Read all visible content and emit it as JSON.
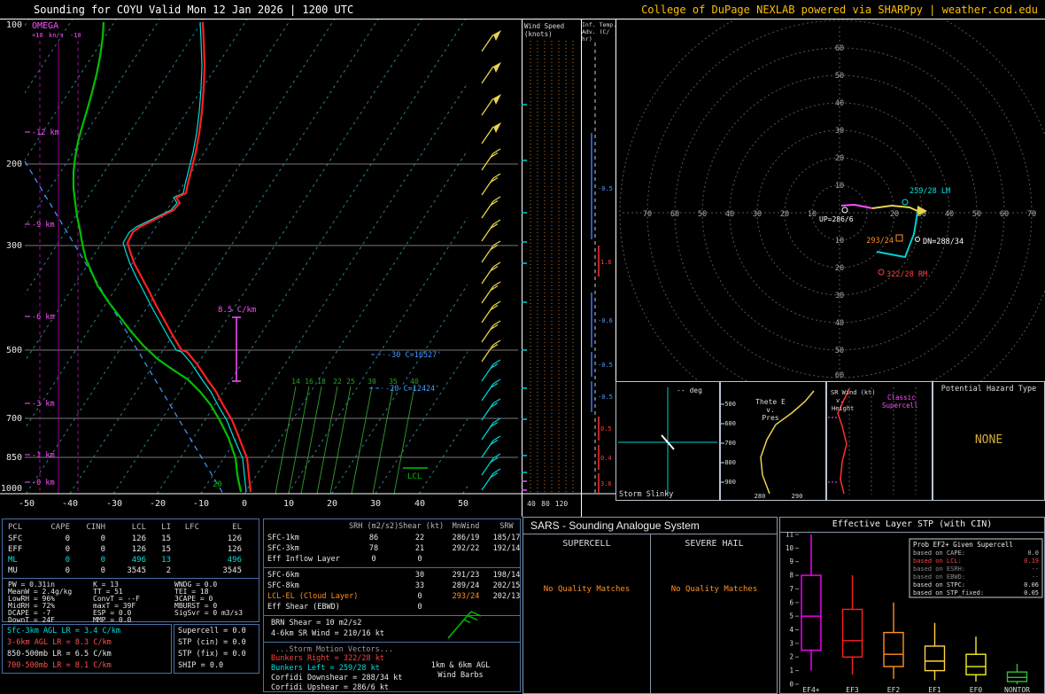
{
  "header": {
    "title": "Sounding for COYU Valid  Mon 12 Jan 2026 | 1200 UTC",
    "credit": "College of DuPage NEXLAB powered via SHARPpy | weather.cod.edu"
  },
  "colors": {
    "temperature": "#ff2020",
    "dewpoint": "#00c000",
    "wetbulb": "#00e0e0",
    "credit": "#ffbf00",
    "hazard_none": "#d4af37"
  },
  "sk": {
    "omega": "OMEGA",
    "op": "+10",
    "ou": "kn/s",
    "om": "-10",
    "p": [
      "100",
      "200",
      "300",
      "500",
      "700",
      "850",
      "1000"
    ],
    "h": [
      "-12 km",
      "-9 km",
      "-6 km",
      "-3 km",
      "-1 km",
      "-0 km"
    ],
    "t": [
      "-50",
      "-40",
      "-30",
      "-20",
      "-10",
      "0",
      "10",
      "20",
      "30",
      "40",
      "50"
    ],
    "lapse": "8.5 C/km",
    "iso30": "-30 C=16527'",
    "iso20": "-20 C=12424'",
    "lcl": "LCL",
    "sfc": "20",
    "mr": [
      "14",
      "16",
      "18",
      "22",
      "25",
      "30",
      "35",
      "40"
    ]
  },
  "wp": {
    "t1": "Wind Speed",
    "t2": "(knots)",
    "a": [
      "40",
      "80",
      "120"
    ]
  },
  "ap": {
    "t1": "Inf. Temp.",
    "t2": "Adv. (C/",
    "t3": "hr)",
    "v": [
      "-0.5",
      "1.6",
      "-0.6",
      "-0.5",
      "-0.5",
      "0.5",
      "0.4",
      "3.6"
    ]
  },
  "ho": {
    "u": [
      "10",
      "20",
      "30",
      "40",
      "50",
      "60"
    ],
    "d": [
      "10",
      "20",
      "30",
      "40",
      "50",
      "60"
    ],
    "l": [
      "10",
      "20",
      "30",
      "40",
      "50",
      "60",
      "70"
    ],
    "r": [
      "20",
      "30",
      "40",
      "50",
      "60",
      "70"
    ],
    "lm": "259/28 LM",
    "up": "UP=286/6",
    "dn": "DN=288/34",
    "mw": "293/24",
    "rm": "322/28 RM"
  },
  "sl": {
    "deg": "-- deg",
    "title": "Storm Slinky"
  },
  "te": {
    "t1": "Thete E",
    "t2": "v.",
    "t3": "Pres",
    "p": [
      "500",
      "600",
      "700",
      "800",
      "900"
    ],
    "x": [
      "280",
      "290"
    ]
  },
  "sr": {
    "t1": "SR Wind (kt)",
    "t2": "v.",
    "t3": "Height",
    "a1": "Classic",
    "a2": "Supercell"
  },
  "hz": {
    "title": "Potential Hazard Type",
    "value": "NONE"
  },
  "pc": {
    "h": [
      "PCL",
      "CAPE",
      "CINH",
      "LCL",
      "LI",
      "LFC",
      "EL"
    ],
    "r": [
      {
        "n": "SFC",
        "cape": "0",
        "cinh": "0",
        "lcl": "126",
        "li": "15",
        "lfc": "",
        "el": "126"
      },
      {
        "n": "EFF",
        "cape": "0",
        "cinh": "0",
        "lcl": "126",
        "li": "15",
        "lfc": "",
        "el": "126"
      },
      {
        "n": "ML",
        "cape": "0",
        "cinh": "0",
        "lcl": "496",
        "li": "13",
        "lfc": "",
        "el": "496"
      },
      {
        "n": "MU",
        "cape": "0",
        "cinh": "0",
        "lcl": "3545",
        "li": "2",
        "lfc": "",
        "el": "3545"
      }
    ]
  },
  "ix": {
    "c1": [
      "PW = 0.31in",
      "MeanW = 2.4g/kg",
      "LowRH = 96%",
      "MidRH = 72%",
      "DCAPE = -7",
      "DownT = 24F"
    ],
    "c2": [
      "K = 13",
      "TT = 51",
      "ConvT = --F",
      "maxT = 39F",
      "ESP = 0.0",
      "MMP = 0.0"
    ],
    "c3": [
      "WNDG = 0.0",
      "TEI = 18",
      "3CAPE = 0",
      "MBURST = 0",
      "SigSvr = 0 m3/s3"
    ]
  },
  "lr": [
    "Sfc-3km AGL LR = 3.4 C/km",
    "3-6km AGL LR = 8.3 C/km",
    "850-500mb LR = 6.5 C/km",
    "700-500mb LR = 8.1 C/km"
  ],
  "cp": [
    "Supercell = 0.0",
    "STP (cin) = 0.0",
    "STP (fix) = 0.0",
    "SHIP = 0.0"
  ],
  "kin": {
    "h": [
      "SRH (m2/s2)",
      "Shear (kt)",
      "MnWind",
      "SRW"
    ],
    "r": [
      {
        "n": "SFC-1km",
        "srh": "86",
        "sh": "22",
        "mw": "286/19",
        "srw": "185/17"
      },
      {
        "n": "SFC-3km",
        "srh": "78",
        "sh": "21",
        "mw": "292/22",
        "srw": "192/14"
      },
      {
        "n": "Eff Inflow Layer",
        "srh": "0",
        "sh": "0",
        "mw": "",
        "srw": ""
      },
      {
        "n": "SFC-6km",
        "srh": "",
        "sh": "30",
        "mw": "291/23",
        "srw": "198/14"
      },
      {
        "n": "SFC-8km",
        "srh": "",
        "sh": "33",
        "mw": "289/24",
        "srw": "202/15"
      },
      {
        "n": "LCL-EL (Cloud Layer)",
        "srh": "",
        "sh": "0",
        "mw": "293/24",
        "srw": "202/13"
      },
      {
        "n": "Eff Shear (EBWD)",
        "srh": "",
        "sh": "0",
        "mw": "",
        "srw": ""
      }
    ],
    "brn": "BRN Shear = 10 m2/s2",
    "srw46": "4-6km SR Wind = 210/16 kt",
    "smv": "...Storm Motion Vectors...",
    "br": "Bunkers Right = 322/28 kt",
    "bl": "Bunkers Left = 259/28 kt",
    "cd": "Corfidi Downshear = 288/34 kt",
    "cu": "Corfidi Upshear = 286/6 kt",
    "cap1": "1km & 6km AGL",
    "cap2": "Wind Barbs"
  },
  "sars": {
    "title": "SARS - Sounding Analogue System",
    "c1": "SUPERCELL",
    "c2": "SEVERE HAIL",
    "m1": "No Quality Matches",
    "m2": "No Quality Matches"
  },
  "stp": {
    "title": "Effective Layer STP (with CIN)",
    "yt": [
      "11",
      "10",
      "9",
      "8",
      "7",
      "6",
      "5",
      "4",
      "3",
      "2",
      "1",
      "0"
    ],
    "lt": "Prob EF2+ Given Supercell",
    "leg": [
      {
        "l": "based on CAPE:",
        "v": "0.0"
      },
      {
        "l": "based on LCL:",
        "v": "0.19"
      },
      {
        "l": "based on ESRH:",
        "v": "--"
      },
      {
        "l": "based on EBWD:",
        "v": "--"
      },
      {
        "l": "based on STPC:",
        "v": "0.06"
      },
      {
        "l": "based on STP_fixed:",
        "v": "0.05"
      }
    ],
    "chart_data": {
      "type": "boxplot",
      "title": "Effective Layer STP (with CIN)",
      "categories": [
        "EF4+",
        "EF3",
        "EF2",
        "EF1",
        "EF0",
        "NONTOR"
      ],
      "colors": [
        "#ff00ff",
        "#ff2020",
        "#ff9020",
        "#ffd24a",
        "#f0f020",
        "#30c030"
      ],
      "ylim": [
        0,
        11
      ],
      "boxes": [
        {
          "whisker_low": 1.0,
          "q1": 2.5,
          "median": 5.0,
          "q3": 8.0,
          "whisker_high": 11.0
        },
        {
          "whisker_low": 0.7,
          "q1": 2.0,
          "median": 3.2,
          "q3": 5.5,
          "whisker_high": 8.0
        },
        {
          "whisker_low": 0.4,
          "q1": 1.3,
          "median": 2.2,
          "q3": 3.8,
          "whisker_high": 6.0
        },
        {
          "whisker_low": 0.3,
          "q1": 1.0,
          "median": 1.7,
          "q3": 2.8,
          "whisker_high": 4.5
        },
        {
          "whisker_low": 0.2,
          "q1": 0.7,
          "median": 1.3,
          "q3": 2.2,
          "whisker_high": 3.5
        },
        {
          "whisker_low": 0.0,
          "q1": 0.2,
          "median": 0.5,
          "q3": 0.9,
          "whisker_high": 1.5
        }
      ]
    }
  }
}
